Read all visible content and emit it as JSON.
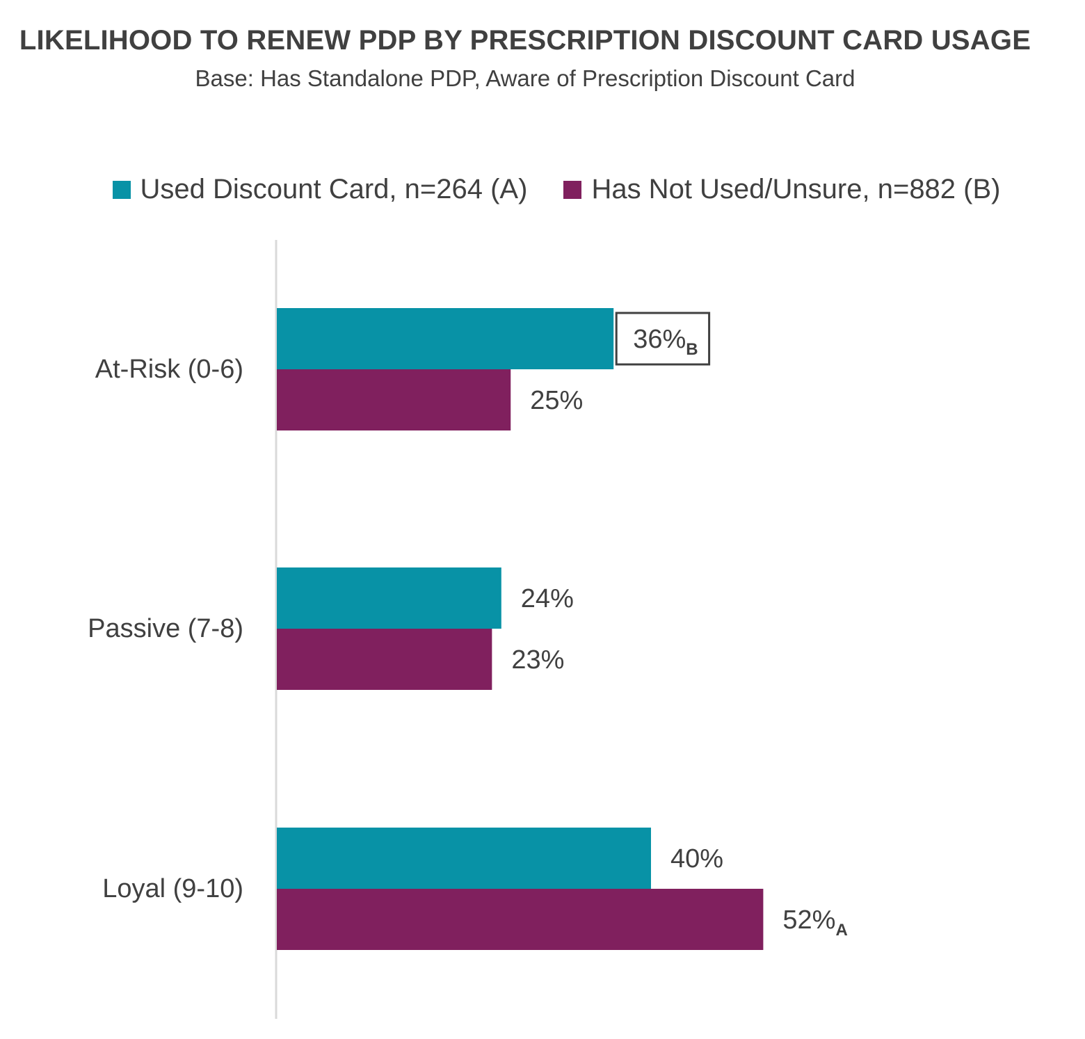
{
  "colors": {
    "series_a": "#0892a6",
    "series_b": "#80205e",
    "text": "#404040",
    "axis": "#d9d9d9",
    "highlight_box": "#404040"
  },
  "chart_data": {
    "type": "bar",
    "orientation": "horizontal",
    "title": "LIKELIHOOD TO RENEW PDP BY PRESCRIPTION DISCOUNT CARD USAGE",
    "subtitle": "Base: Has Standalone PDP, Aware of Prescription Discount Card",
    "categories": [
      "At-Risk (0-6)",
      "Passive (7-8)",
      "Loyal (9-10)"
    ],
    "series": [
      {
        "name": "Used Discount Card, n=264 (A)",
        "values": [
          36,
          24,
          40
        ],
        "labels": [
          "36%",
          "24%",
          "40%"
        ],
        "sig": [
          "B",
          "",
          ""
        ],
        "boxed": [
          true,
          false,
          false
        ]
      },
      {
        "name": "Has Not Used/Unsure, n=882 (B)",
        "values": [
          25,
          23,
          52
        ],
        "labels": [
          "25%",
          "23%",
          "52%"
        ],
        "sig": [
          "",
          "",
          "A"
        ],
        "boxed": [
          false,
          false,
          false
        ]
      }
    ],
    "xlim": [
      0,
      100
    ],
    "grid": false,
    "legend_position": "top"
  }
}
